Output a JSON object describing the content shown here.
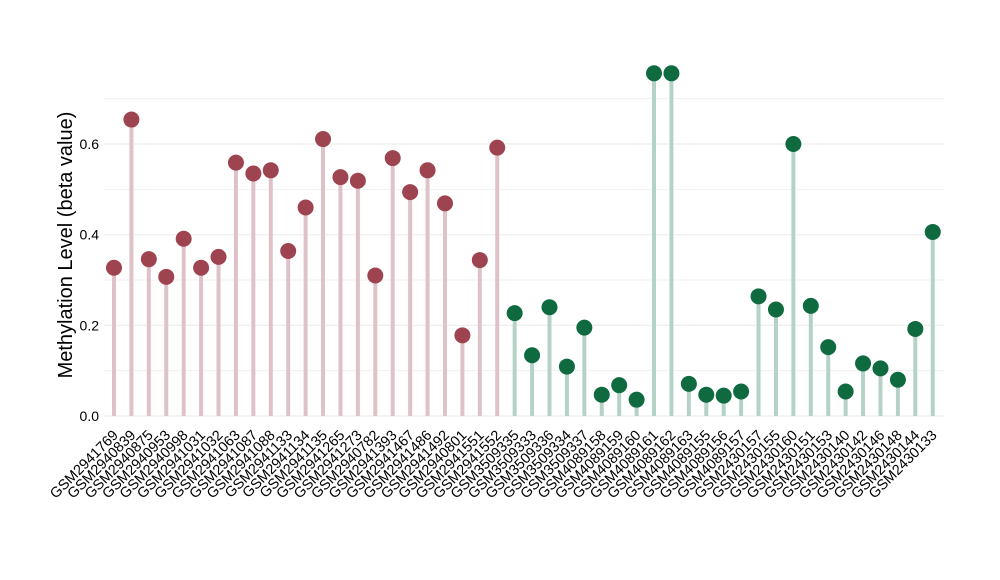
{
  "chart_data": {
    "type": "lollipop",
    "ylabel": "Methylation Level (beta value)",
    "xlabel": "",
    "ylim": [
      0,
      0.7
    ],
    "yticks": [
      0.0,
      0.2,
      0.4,
      0.6
    ],
    "ytick_labels": [
      "0.0",
      "0.2",
      "0.4",
      "0.6"
    ],
    "grid": true,
    "legend": "none",
    "colors": {
      "group1_point": "#9e4350",
      "group1_stem": "#dfc2c8",
      "group2_point": "#0f6b3f",
      "group2_stem": "#b4d3c6",
      "grid": "#eeeeee"
    },
    "categories": [
      "GSM2941769",
      "GSM2940839",
      "GSM2940875",
      "GSM2940953",
      "GSM2940998",
      "GSM2941031",
      "GSM2941032",
      "GSM2941063",
      "GSM2941087",
      "GSM2941088",
      "GSM2941133",
      "GSM2941134",
      "GSM2941135",
      "GSM2941265",
      "GSM2941273",
      "GSM2940782",
      "GSM2941393",
      "GSM2941467",
      "GSM2941486",
      "GSM2941492",
      "GSM2940801",
      "GSM2941551",
      "GSM2941552",
      "GSM3509335",
      "GSM3509333",
      "GSM3509336",
      "GSM3509334",
      "GSM3509337",
      "GSM4089158",
      "GSM4089159",
      "GSM4089160",
      "GSM4089161",
      "GSM4089162",
      "GSM4089163",
      "GSM4089155",
      "GSM4089156",
      "GSM4089157",
      "GSM2430157",
      "GSM2430155",
      "GSM2430160",
      "GSM2430151",
      "GSM2430153",
      "GSM2430140",
      "GSM2430142",
      "GSM2430146",
      "GSM2430148",
      "GSM2430144",
      "GSM2430133"
    ],
    "values": [
      0.327,
      0.654,
      0.346,
      0.307,
      0.391,
      0.327,
      0.351,
      0.559,
      0.535,
      0.542,
      0.364,
      0.46,
      0.611,
      0.527,
      0.519,
      0.31,
      0.569,
      0.494,
      0.542,
      0.469,
      0.178,
      0.344,
      0.592,
      0.227,
      0.134,
      0.24,
      0.109,
      0.195,
      0.047,
      0.068,
      0.036,
      0.756,
      0.756,
      0.071,
      0.047,
      0.045,
      0.054,
      0.264,
      0.235,
      0.6,
      0.243,
      0.152,
      0.054,
      0.116,
      0.105,
      0.08,
      0.192,
      0.406
    ],
    "groups": [
      1,
      1,
      1,
      1,
      1,
      1,
      1,
      1,
      1,
      1,
      1,
      1,
      1,
      1,
      1,
      1,
      1,
      1,
      1,
      1,
      1,
      1,
      1,
      2,
      2,
      2,
      2,
      2,
      2,
      2,
      2,
      2,
      2,
      2,
      2,
      2,
      2,
      2,
      2,
      2,
      2,
      2,
      2,
      2,
      2,
      2,
      2,
      2
    ]
  }
}
